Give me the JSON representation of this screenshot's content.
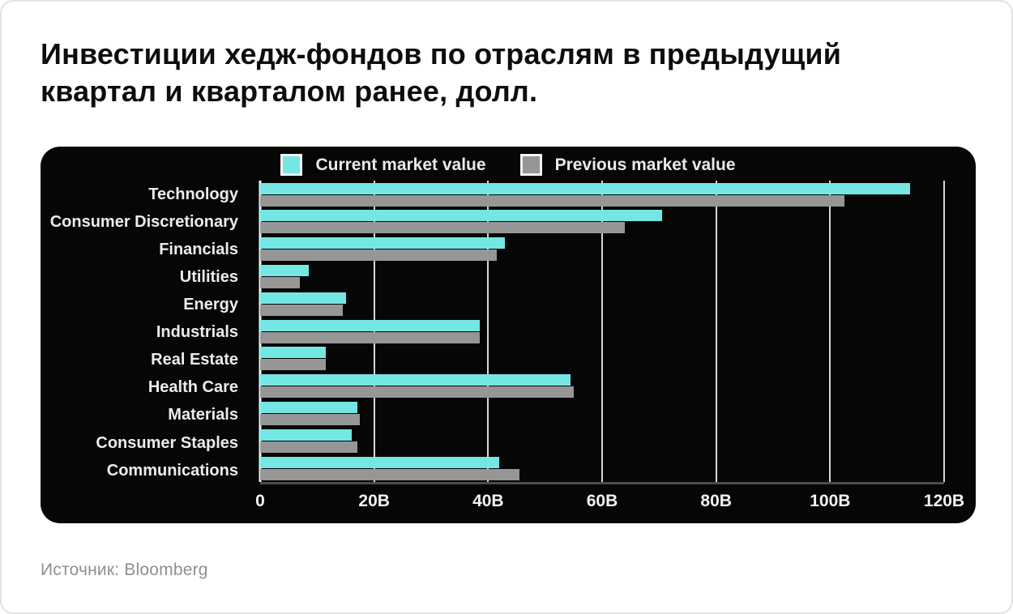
{
  "header": {
    "title": "Инвестиции хедж-фондов по отраслям в предыдущий квартал и кварталом ранее, долл.",
    "title_line1": "Инвестиции хедж-фондов по отраслям в предыдущий",
    "title_line2": "квартал и кварталом ранее, долл."
  },
  "source": "Источник: Bloomberg",
  "colors": {
    "current_bar": "#74e7e5",
    "previous_bar": "#969696",
    "panel_background": "#060606",
    "gridline": "#d6d6d6",
    "axis_line": "#4d4d4d",
    "chart_text": "#ececec",
    "title_text": "#0d0d0d",
    "source_text": "#8f8f8f"
  },
  "chart_data": {
    "type": "bar",
    "orientation": "horizontal",
    "title": "Инвестиции хедж-фондов по отраслям в предыдущий квартал и кварталом ранее, долл.",
    "categories": [
      "Technology",
      "Consumer Discretionary",
      "Financials",
      "Utilities",
      "Energy",
      "Industrials",
      "Real Estate",
      "Health Care",
      "Materials",
      "Consumer Staples",
      "Communications"
    ],
    "series": [
      {
        "name": "Current market value",
        "color": "#74e7e5",
        "values": [
          114,
          70.5,
          43,
          8.5,
          15,
          38.5,
          11.5,
          54.5,
          17,
          16,
          42
        ]
      },
      {
        "name": "Previous market value",
        "color": "#969696",
        "values": [
          102.5,
          64,
          41.5,
          7,
          14.5,
          38.5,
          11.5,
          55,
          17.5,
          17,
          45.5
        ]
      }
    ],
    "xlabel": "",
    "ylabel": "",
    "xlim": [
      0,
      120
    ],
    "xtick_values": [
      0,
      20,
      40,
      60,
      80,
      100,
      120
    ],
    "xtick_labels": [
      "0",
      "20B",
      "40B",
      "60B",
      "80B",
      "100B",
      "120B"
    ],
    "unit": "B (billions USD)",
    "grid": true,
    "legend_position": "top"
  }
}
